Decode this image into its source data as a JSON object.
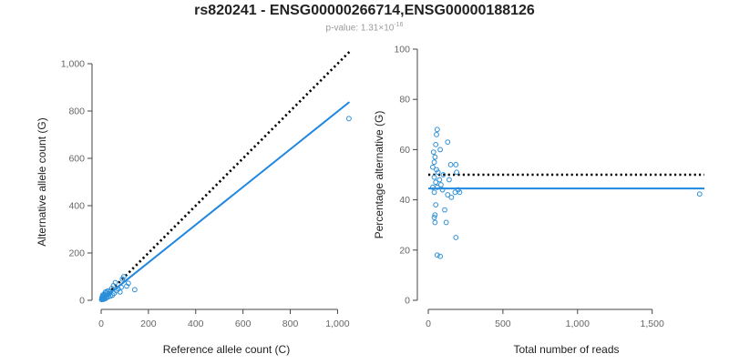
{
  "title": "rs820241 - ENSG00000266714,ENSG00000188126",
  "subtitle": {
    "prefix": "p-value: 1.31×10",
    "exponent": "-16"
  },
  "colors": {
    "points": "#2b8fd9",
    "fit": "#1f87e0",
    "reference": "#000000"
  },
  "chart_data": [
    {
      "type": "scatter",
      "xlabel": "Reference allele count (C)",
      "ylabel": "Alternative allele count (G)",
      "xlim": [
        0,
        1060
      ],
      "ylim": [
        0,
        1000
      ],
      "xticks": [
        0,
        200,
        400,
        600,
        800,
        1000
      ],
      "xtick_labels": [
        "0",
        "200",
        "400",
        "600",
        "800",
        "1,000"
      ],
      "yticks": [
        0,
        200,
        400,
        600,
        800,
        1000
      ],
      "ytick_labels": [
        "0",
        "200",
        "400",
        "600",
        "800",
        "1,000"
      ],
      "points": [
        [
          1048,
          768
        ],
        [
          142,
          45
        ],
        [
          115,
          72
        ],
        [
          108,
          60
        ],
        [
          96,
          100
        ],
        [
          90,
          90
        ],
        [
          85,
          55
        ],
        [
          80,
          35
        ],
        [
          72,
          48
        ],
        [
          65,
          40
        ],
        [
          60,
          75
        ],
        [
          55,
          30
        ],
        [
          52,
          62
        ],
        [
          48,
          22
        ],
        [
          45,
          50
        ],
        [
          40,
          18
        ],
        [
          38,
          35
        ],
        [
          35,
          28
        ],
        [
          32,
          40
        ],
        [
          30,
          15
        ],
        [
          28,
          25
        ],
        [
          25,
          38
        ],
        [
          24,
          12
        ],
        [
          22,
          30
        ],
        [
          20,
          20
        ],
        [
          19,
          8
        ],
        [
          18,
          35
        ],
        [
          16,
          22
        ],
        [
          15,
          14
        ],
        [
          14,
          6
        ],
        [
          12,
          26
        ],
        [
          11,
          10
        ],
        [
          10,
          18
        ],
        [
          9,
          4
        ],
        [
          8,
          12
        ],
        [
          7,
          22
        ],
        [
          6,
          8
        ],
        [
          5,
          15
        ],
        [
          4,
          5
        ],
        [
          3,
          10
        ],
        [
          2,
          3
        ]
      ],
      "fit_line": [
        [
          0,
          0
        ],
        [
          1050,
          838
        ]
      ],
      "reference_line": [
        [
          0,
          0
        ],
        [
          1050,
          1050
        ]
      ]
    },
    {
      "type": "scatter",
      "xlabel": "Total number of reads",
      "ylabel": "Percentage alternative (G)",
      "xlim": [
        0,
        1850
      ],
      "ylim": [
        0,
        100
      ],
      "xticks": [
        0,
        500,
        1000,
        1500
      ],
      "xtick_labels": [
        "0",
        "500",
        "1,000",
        "1,500"
      ],
      "yticks": [
        0,
        20,
        40,
        60,
        80,
        100
      ],
      "ytick_labels": [
        "0",
        "20",
        "40",
        "60",
        "80",
        "100"
      ],
      "points": [
        [
          1818,
          42.3
        ],
        [
          60,
          68
        ],
        [
          55,
          66
        ],
        [
          130,
          63
        ],
        [
          50,
          62
        ],
        [
          80,
          60
        ],
        [
          35,
          59
        ],
        [
          45,
          57
        ],
        [
          40,
          55
        ],
        [
          150,
          54
        ],
        [
          185,
          54
        ],
        [
          30,
          53
        ],
        [
          55,
          52
        ],
        [
          65,
          51
        ],
        [
          190,
          51
        ],
        [
          100,
          50
        ],
        [
          40,
          49
        ],
        [
          75,
          48
        ],
        [
          140,
          48
        ],
        [
          50,
          47
        ],
        [
          85,
          46
        ],
        [
          30,
          45
        ],
        [
          60,
          45
        ],
        [
          95,
          44
        ],
        [
          200,
          44
        ],
        [
          40,
          43
        ],
        [
          180,
          43
        ],
        [
          130,
          42
        ],
        [
          210,
          43
        ],
        [
          155,
          41
        ],
        [
          50,
          38
        ],
        [
          110,
          36
        ],
        [
          45,
          34
        ],
        [
          40,
          33
        ],
        [
          45,
          31
        ],
        [
          120,
          31
        ],
        [
          185,
          25
        ],
        [
          60,
          18
        ],
        [
          80,
          17.5
        ]
      ],
      "fit_line": [
        [
          0,
          44.5
        ],
        [
          1850,
          44.5
        ]
      ],
      "reference_line": [
        [
          0,
          50
        ],
        [
          1850,
          50
        ]
      ]
    }
  ]
}
